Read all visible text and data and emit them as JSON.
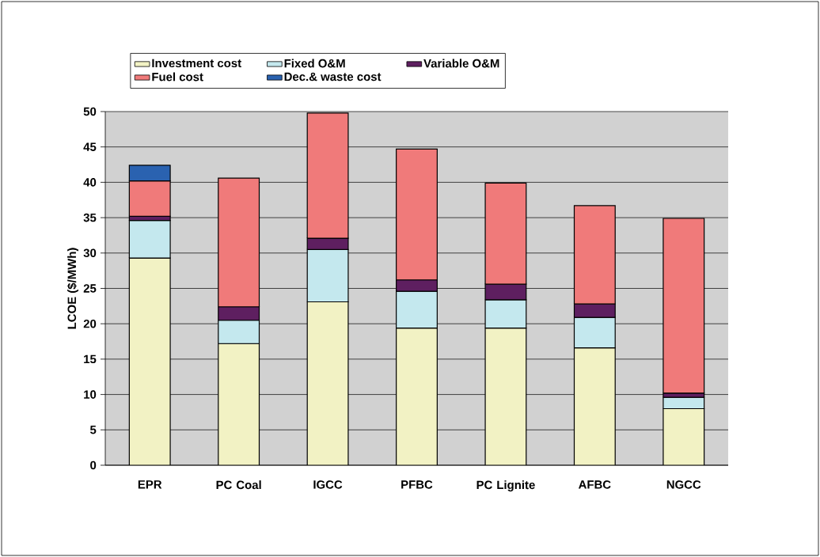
{
  "chart_data": {
    "type": "bar",
    "stacked": true,
    "ylabel": "LCOE ($/MWh)",
    "categories": [
      "EPR",
      "PC Coal",
      "IGCC",
      "PFBC",
      "PC Lignite",
      "AFBC",
      "NGCC"
    ],
    "series": [
      {
        "name": "Investment cost",
        "color": "#f2f2c4",
        "values": [
          29.3,
          17.2,
          23.1,
          19.4,
          19.4,
          16.6,
          8.0
        ]
      },
      {
        "name": "Fixed O&M",
        "color": "#c4e8ee",
        "values": [
          5.3,
          3.3,
          7.4,
          5.2,
          4.0,
          4.3,
          1.6
        ]
      },
      {
        "name": "Variable O&M",
        "color": "#5e1f60",
        "values": [
          0.6,
          1.9,
          1.6,
          1.6,
          2.2,
          1.9,
          0.6
        ]
      },
      {
        "name": "Fuel cost",
        "color": "#f07a7a",
        "values": [
          5.0,
          18.2,
          17.7,
          18.5,
          14.3,
          13.9,
          24.7
        ]
      },
      {
        "name": "Dec.& waste cost",
        "color": "#2a62b0",
        "values": [
          2.2,
          null,
          null,
          null,
          null,
          null,
          null
        ]
      }
    ],
    "ylim": [
      0,
      50
    ],
    "yticks": [
      0,
      5,
      10,
      15,
      20,
      25,
      30,
      35,
      40,
      45,
      50
    ],
    "grid": "y",
    "legend": "top left"
  }
}
